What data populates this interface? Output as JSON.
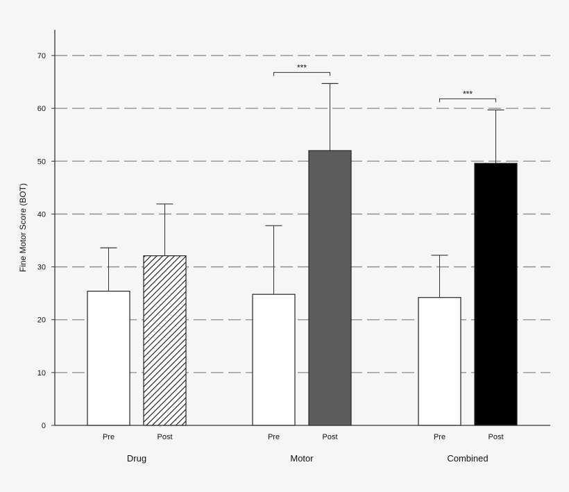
{
  "chart_data": {
    "type": "bar",
    "ylabel": "Fine Motor Score (BOT)",
    "ylim": [
      0,
      70
    ],
    "yticks": [
      0,
      10,
      20,
      30,
      40,
      50,
      60,
      70
    ],
    "grid": "horizontal dashed",
    "groups": [
      {
        "label": "Drug",
        "bars": [
          {
            "label": "Pre",
            "value": 25.4,
            "error": 8.2,
            "fill": "white"
          },
          {
            "label": "Post",
            "value": 32.1,
            "error": 9.8,
            "fill": "hatched"
          }
        ],
        "significance": ""
      },
      {
        "label": "Motor",
        "bars": [
          {
            "label": "Pre",
            "value": 24.8,
            "error": 13.0,
            "fill": "white"
          },
          {
            "label": "Post",
            "value": 52.0,
            "error": 12.7,
            "fill": "dark-gray"
          }
        ],
        "significance": "***"
      },
      {
        "label": "Combined",
        "bars": [
          {
            "label": "Pre",
            "value": 24.2,
            "error": 8.0,
            "fill": "white"
          },
          {
            "label": "Post",
            "value": 49.6,
            "error": 10.1,
            "fill": "black"
          }
        ],
        "significance": "***"
      }
    ]
  },
  "colors": {
    "background": "#f6f6f6",
    "white_bar": "#ffffff",
    "dark_gray_bar": "#5d5d5d",
    "black_bar": "#000000",
    "grid": "#888888",
    "axis": "#333333"
  }
}
